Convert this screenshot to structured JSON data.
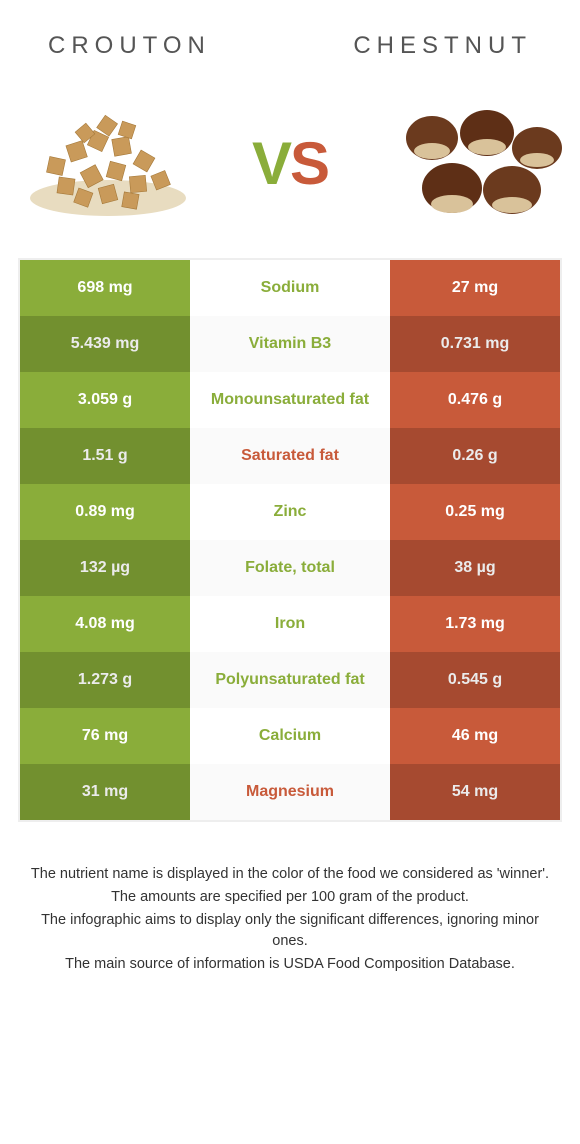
{
  "colors": {
    "left_food": "#8aad3a",
    "right_food": "#c85a3a",
    "left_dark": "#7c9c33",
    "right_dark": "#b45034",
    "tx_white": "#ffffff"
  },
  "header": {
    "left_title": "Crouton",
    "right_title": "Chestnut"
  },
  "vs": {
    "v": "V",
    "s": "S"
  },
  "rows": [
    {
      "left": "698 mg",
      "label": "Sodium",
      "right": "27 mg",
      "winner": "left"
    },
    {
      "left": "5.439 mg",
      "label": "Vitamin B3",
      "right": "0.731 mg",
      "winner": "left"
    },
    {
      "left": "3.059 g",
      "label": "Monounsaturated fat",
      "right": "0.476 g",
      "winner": "left"
    },
    {
      "left": "1.51 g",
      "label": "Saturated fat",
      "right": "0.26 g",
      "winner": "right"
    },
    {
      "left": "0.89 mg",
      "label": "Zinc",
      "right": "0.25 mg",
      "winner": "left"
    },
    {
      "left": "132 µg",
      "label": "Folate, total",
      "right": "38 µg",
      "winner": "left"
    },
    {
      "left": "4.08 mg",
      "label": "Iron",
      "right": "1.73 mg",
      "winner": "left"
    },
    {
      "left": "1.273 g",
      "label": "Polyunsaturated fat",
      "right": "0.545 g",
      "winner": "left"
    },
    {
      "left": "76 mg",
      "label": "Calcium",
      "right": "46 mg",
      "winner": "left"
    },
    {
      "left": "31 mg",
      "label": "Magnesium",
      "right": "54 mg",
      "winner": "right"
    }
  ],
  "footnotes": [
    "The nutrient name is displayed in the color of the food we considered as 'winner'.",
    "The amounts are specified per 100 gram of the product.",
    "The infographic aims to display only the significant differences, ignoring minor ones.",
    "The main source of information is USDA Food Composition Database."
  ]
}
